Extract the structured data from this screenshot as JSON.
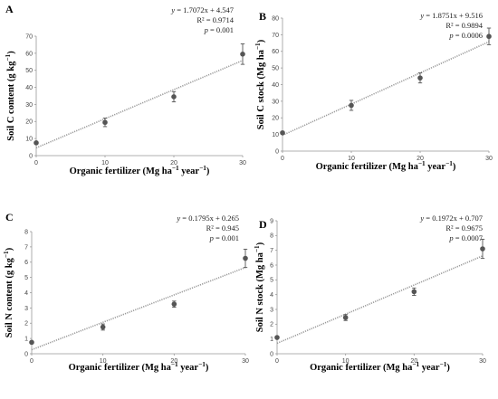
{
  "chart_data": [
    {
      "type": "scatter",
      "panel": "A",
      "ylabel": "Soil C content (g kg−1)",
      "xlabel": "Organic fertilizer (Mg ha−1 year−1)",
      "xlim": [
        0,
        30
      ],
      "ylim": [
        0,
        70
      ],
      "x_ticks": [
        0,
        10,
        20,
        30
      ],
      "y_ticks": [
        0,
        10,
        20,
        30,
        40,
        50,
        60,
        70
      ],
      "x": [
        0,
        10,
        20,
        30
      ],
      "y": [
        7.5,
        19.5,
        34.5,
        59.5
      ],
      "error": [
        0.5,
        2.5,
        3,
        6
      ],
      "trendline": {
        "slope": 1.7072,
        "intercept": 4.547
      },
      "equation": "y = 1.7072x + 4.547",
      "r2": "R² = 0.9714",
      "p": "p = 0.001",
      "grid": false
    },
    {
      "type": "scatter",
      "panel": "B",
      "ylabel": "Soil C stock (Mg ha−1)",
      "xlabel": "Organic fertilizer (Mg ha−1 year−1)",
      "xlim": [
        0,
        30
      ],
      "ylim": [
        0,
        80
      ],
      "x_ticks": [
        0,
        10,
        20,
        30
      ],
      "y_ticks": [
        0,
        10,
        20,
        30,
        40,
        50,
        60,
        70,
        80
      ],
      "x": [
        0,
        10,
        20,
        30
      ],
      "y": [
        11,
        27.5,
        44,
        69
      ],
      "error": [
        0.5,
        3,
        3,
        5
      ],
      "trendline": {
        "slope": 1.8751,
        "intercept": 9.516
      },
      "equation": "y = 1.8751x + 9.516",
      "r2": "R² = 0.9894",
      "p": "p = 0.0006",
      "grid": false
    },
    {
      "type": "scatter",
      "panel": "C",
      "ylabel": "Soil N content (g kg−1)",
      "xlabel": "Organic fertilizer (Mg ha−1 year−1)",
      "xlim": [
        0,
        30
      ],
      "ylim": [
        0,
        8
      ],
      "x_ticks": [
        0,
        10,
        20,
        30
      ],
      "y_ticks": [
        0,
        1,
        2,
        3,
        4,
        5,
        6,
        7,
        8
      ],
      "x": [
        0,
        10,
        20,
        30
      ],
      "y": [
        0.75,
        1.75,
        3.25,
        6.25
      ],
      "error": [
        0.05,
        0.2,
        0.2,
        0.6
      ],
      "trendline": {
        "slope": 0.1795,
        "intercept": 0.265
      },
      "equation": "y = 0.1795x + 0.265",
      "r2": "R² = 0.945",
      "p": "p = 0.001",
      "grid": false
    },
    {
      "type": "scatter",
      "panel": "D",
      "ylabel": "Soil N stock (Mg ha−1)",
      "xlabel": "Organic fertilizer (Mg ha−1 year−1)",
      "xlim": [
        0,
        30
      ],
      "ylim": [
        0,
        9
      ],
      "x_ticks": [
        0,
        10,
        20,
        30
      ],
      "y_ticks": [
        0,
        1,
        2,
        3,
        4,
        5,
        6,
        7,
        8,
        9
      ],
      "x": [
        0,
        10,
        20,
        30
      ],
      "y": [
        1.1,
        2.45,
        4.2,
        7.1
      ],
      "error": [
        0.05,
        0.2,
        0.25,
        0.65
      ],
      "trendline": {
        "slope": 0.1972,
        "intercept": 0.707
      },
      "equation": "y = 0.1972x + 0.707",
      "r2": "R² = 0.9675",
      "p": "p = 0.0007",
      "grid": false
    }
  ]
}
